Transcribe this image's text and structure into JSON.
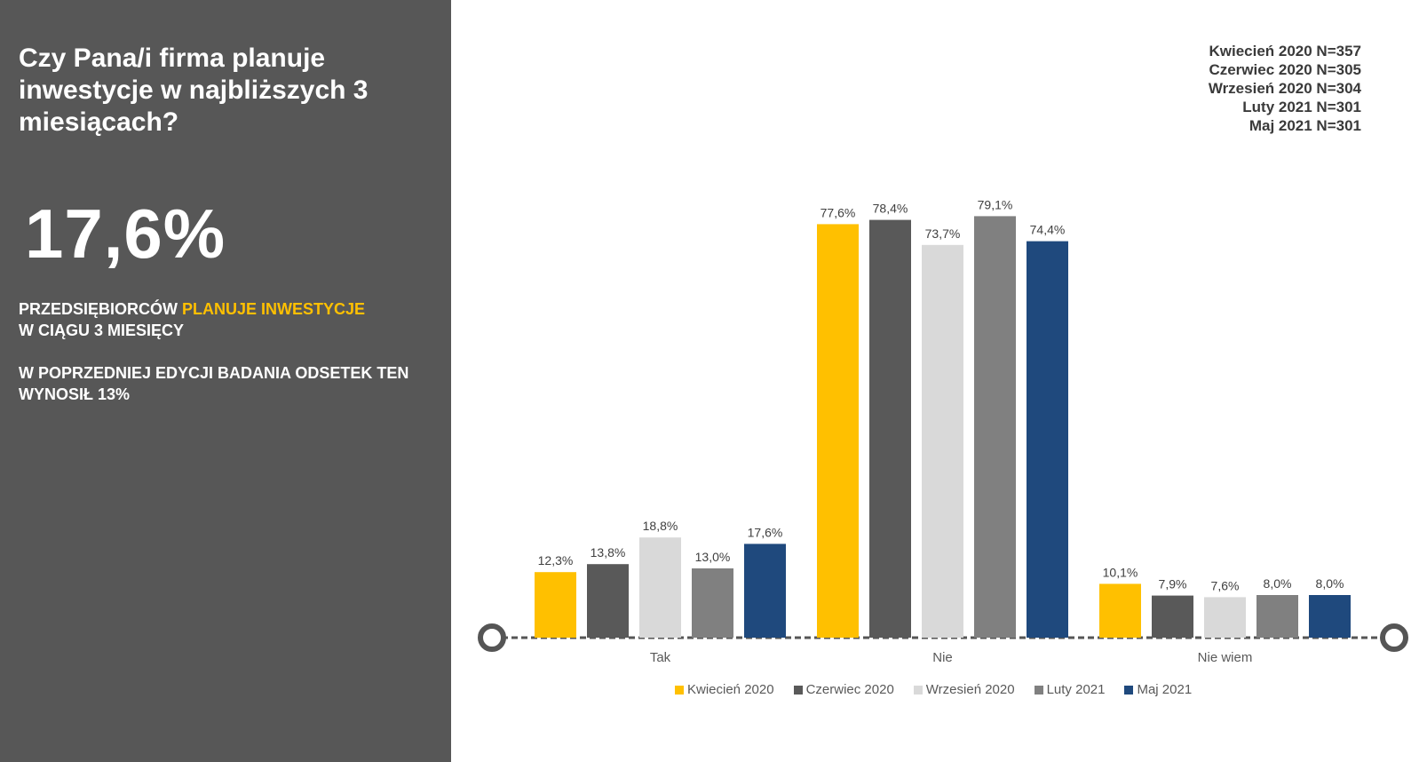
{
  "panel": {
    "question": "Czy Pana/i firma planuje inwestycje w najbliższych 3 miesiącach?",
    "big_value": "17,6%",
    "statement_part1": "PRZEDSIĘBIORCÓW ",
    "statement_highlight": "PLANUJE INWESTYCJE",
    "statement_part2": "W CIĄGU 3 MIESIĘCY",
    "previous_edition": "W POPRZEDNIEJ EDYCJI BADANIA ODSETEK TEN WYNOSIŁ 13%"
  },
  "sample_sizes": [
    "Kwiecień 2020 N=357",
    "Czerwiec 2020 N=305",
    "Wrzesień 2020 N=304",
    "Luty 2021 N=301",
    "Maj 2021 N=301"
  ],
  "colors": {
    "panel_bg": "#575757",
    "accent": "#ffc000",
    "series": [
      "#ffc000",
      "#595959",
      "#d9d9d9",
      "#808080",
      "#1f497d"
    ]
  },
  "chart_data": {
    "type": "bar",
    "categories": [
      "Tak",
      "Nie",
      "Nie wiem"
    ],
    "series": [
      {
        "name": "Kwiecień 2020",
        "values": [
          12.3,
          77.6,
          10.1
        ],
        "labels": [
          "12,3%",
          "77,6%",
          "10,1%"
        ]
      },
      {
        "name": "Czerwiec 2020",
        "values": [
          13.8,
          78.4,
          7.9
        ],
        "labels": [
          "13,8%",
          "78,4%",
          "7,9%"
        ]
      },
      {
        "name": "Wrzesień 2020",
        "values": [
          18.8,
          73.7,
          7.6
        ],
        "labels": [
          "18,8%",
          "73,7%",
          "7,6%"
        ]
      },
      {
        "name": "Luty 2021",
        "values": [
          13.0,
          79.1,
          8.0
        ],
        "labels": [
          "13,0%",
          "79,1%",
          "8,0%"
        ]
      },
      {
        "name": "Maj 2021",
        "values": [
          17.6,
          74.4,
          8.0
        ],
        "labels": [
          "17,6%",
          "74,4%",
          "8,0%"
        ]
      }
    ],
    "ylim": [
      0,
      80
    ],
    "grid": false,
    "legend": "bottom"
  }
}
